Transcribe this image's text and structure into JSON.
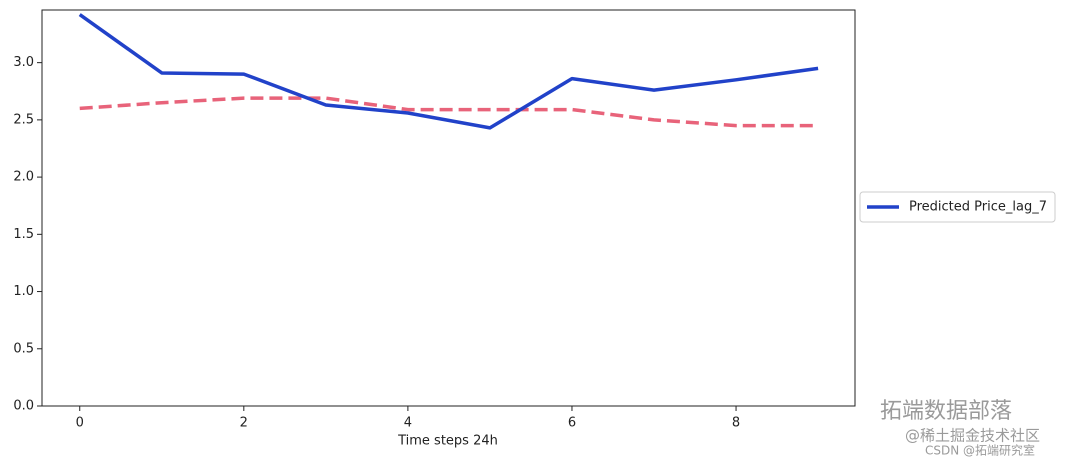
{
  "chart_data": {
    "type": "line",
    "x": [
      0,
      1,
      2,
      3,
      4,
      5,
      6,
      7,
      8,
      9
    ],
    "series": [
      {
        "name": "Predicted Price_lag_7",
        "color": "#2142c9",
        "dash": false,
        "values": [
          3.42,
          2.91,
          2.9,
          2.63,
          2.56,
          2.43,
          2.86,
          2.76,
          2.85,
          2.95
        ]
      },
      {
        "color": "#e8637a",
        "dash": true,
        "values": [
          2.6,
          2.65,
          2.69,
          2.69,
          2.59,
          2.59,
          2.59,
          2.5,
          2.45,
          2.45
        ]
      }
    ],
    "xlabel": "Time steps 24h",
    "xlim": [
      -0.46,
      9.45
    ],
    "xticks": [
      0,
      2,
      4,
      6,
      8
    ],
    "ylim": [
      0,
      3.46
    ],
    "yticks": [
      {
        "value": 0,
        "label": "0.0"
      },
      0.5,
      {
        "value": 1,
        "label": "1.0"
      },
      1.5,
      {
        "value": 2,
        "label": "2.0"
      },
      2.5,
      {
        "value": 3,
        "label": "3.0"
      }
    ],
    "legend": "outside-right"
  },
  "watermarks": [
    "拓端数据部落",
    "@稀土掘金技术社区",
    "CSDN @拓端研究室"
  ]
}
